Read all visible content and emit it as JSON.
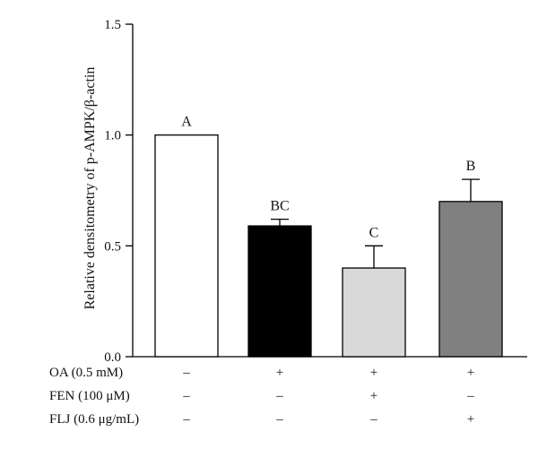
{
  "chart_data": {
    "type": "bar",
    "ylabel": "Relative densitometry of p-AMPK/β-actin",
    "ylim": [
      0,
      1.5
    ],
    "yticks": [
      "0.0",
      "0.5",
      "1.0",
      "1.5"
    ],
    "bars": [
      {
        "value": 1.0,
        "error": 0.0,
        "letter": "A",
        "fill": "#ffffff"
      },
      {
        "value": 0.59,
        "error": 0.03,
        "letter": "BC",
        "fill": "#000000"
      },
      {
        "value": 0.4,
        "error": 0.1,
        "letter": "C",
        "fill": "#d9d9d9"
      },
      {
        "value": 0.7,
        "error": 0.1,
        "letter": "B",
        "fill": "#808080"
      }
    ],
    "treatments": [
      {
        "label": "OA (0.5 mM)",
        "signs": [
          "–",
          "+",
          "+",
          "+"
        ]
      },
      {
        "label": "FEN (100 μM)",
        "signs": [
          "–",
          "–",
          "+",
          "–"
        ]
      },
      {
        "label": "FLJ (0.6 μg/mL)",
        "signs": [
          "–",
          "–",
          "–",
          "+"
        ]
      }
    ]
  }
}
